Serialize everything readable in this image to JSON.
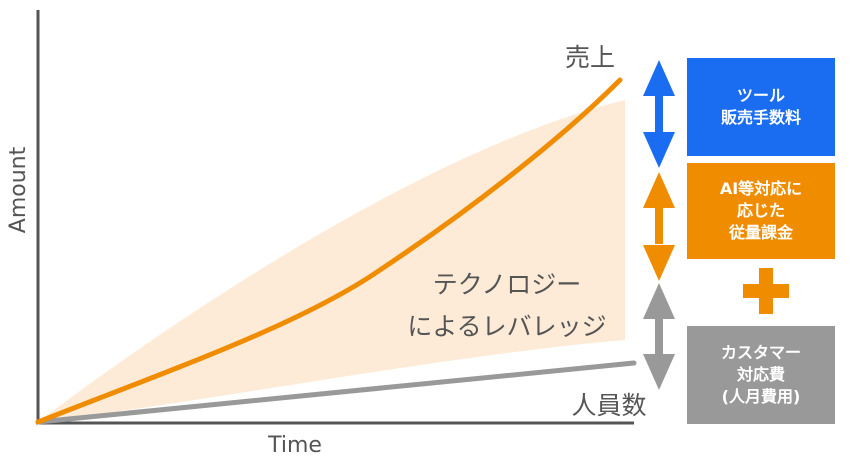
{
  "axes": {
    "y_label": "Amount",
    "x_label": "Time"
  },
  "lines": {
    "sales_label": "売上",
    "headcount_label": "人員数"
  },
  "region": {
    "label_line1": "テクノロジー",
    "label_line2": "によるレバレッジ"
  },
  "boxes": {
    "tool": {
      "line1": "ツール",
      "line2": "販売手数料"
    },
    "ai": {
      "line1": "AI等対応に",
      "line2": "応じた",
      "line3": "従量課金"
    },
    "customer": {
      "line1": "カスタマー",
      "line2": "対応費",
      "line3": "(人月費用)"
    }
  },
  "colors": {
    "axis": "#555555",
    "sales_line": "#f08c00",
    "headcount_line": "#999999",
    "leverage_fill": "#fde9d3",
    "tool_box": "#1a6df0",
    "ai_box": "#f08c00",
    "customer_box": "#999999",
    "plus": "#f08c00"
  },
  "icons": {
    "tool_arrow": "double-arrow-vertical-icon",
    "ai_arrow": "double-arrow-vertical-icon",
    "customer_arrow": "double-arrow-vertical-icon",
    "plus": "plus-icon"
  }
}
